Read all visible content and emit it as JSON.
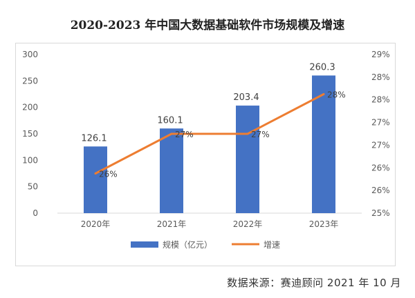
{
  "title": "2020-2023 年中国大数据基础软件市场规模及增速",
  "source": "数据来源：赛迪顾问  2021 年 10 月",
  "colors": {
    "bar": "#4472C4",
    "line": "#ED7D31",
    "grid": "#d9d9d9",
    "axis_text": "#595959"
  },
  "chart_data": {
    "type": "bar+line",
    "categories": [
      "2020年",
      "2021年",
      "2022年",
      "2023年"
    ],
    "series": [
      {
        "name": "规模（亿元）",
        "type": "bar",
        "axis": "left",
        "values": [
          126.1,
          160.1,
          203.4,
          260.3
        ],
        "labels": [
          "126.1",
          "160.1",
          "203.4",
          "260.3"
        ]
      },
      {
        "name": "增速",
        "type": "line",
        "axis": "right",
        "values": [
          0.26,
          0.27,
          0.27,
          0.28
        ],
        "labels": [
          "26%",
          "27%",
          "27%",
          "28%"
        ]
      }
    ],
    "y_left": {
      "min": 0,
      "max": 300,
      "ticks": [
        0,
        50,
        100,
        150,
        200,
        250,
        300
      ]
    },
    "y_right": {
      "min": 0.25,
      "max": 0.29,
      "tick_labels": [
        "25%",
        "26%",
        "26%",
        "27%",
        "27%",
        "28%",
        "28%",
        "29%"
      ]
    },
    "legend": "bottom",
    "grid": false
  }
}
